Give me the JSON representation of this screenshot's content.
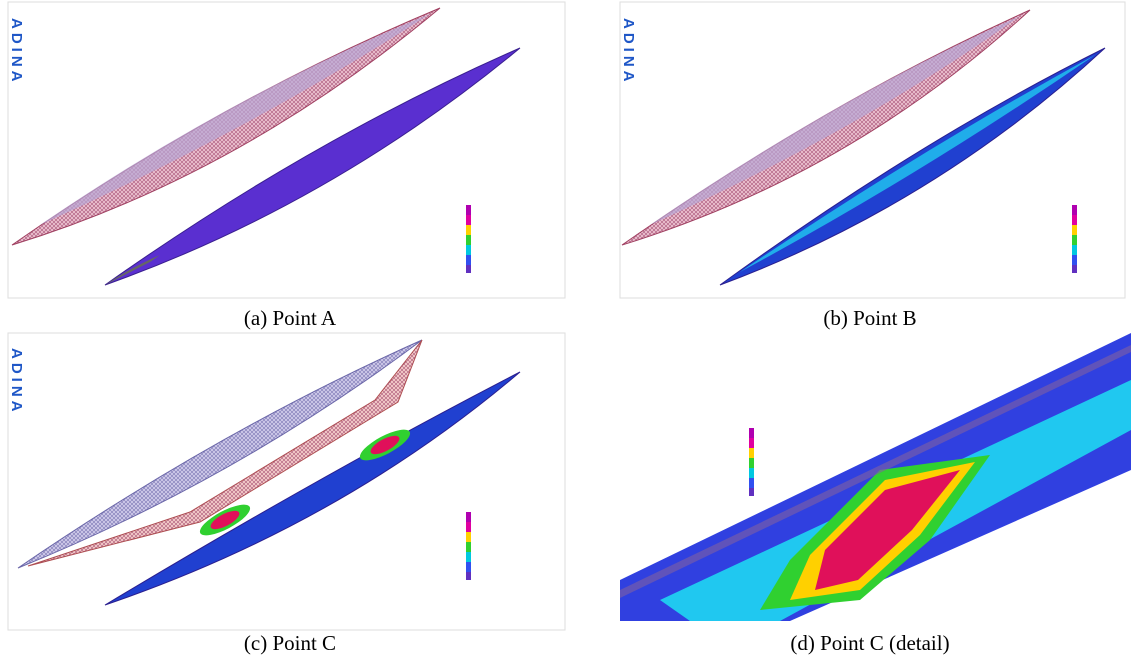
{
  "logo": "ADINA",
  "panels": [
    {
      "caption": "(a) Point A"
    },
    {
      "caption": "(b) Point B"
    },
    {
      "caption": "(c) Point C"
    },
    {
      "caption": "(d) Point C (detail)"
    }
  ]
}
